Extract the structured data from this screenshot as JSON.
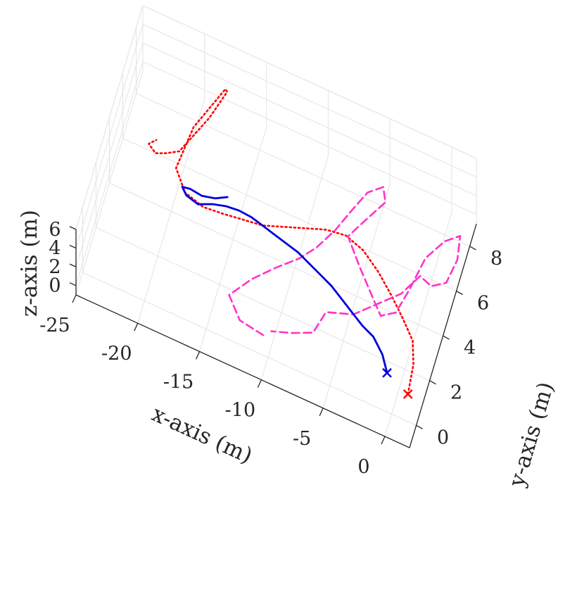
{
  "chart_data": {
    "type": "line",
    "projection": "3d",
    "title": "",
    "xlabel": "x-axis (m)",
    "ylabel": "y-axis (m)",
    "zlabel": "z-axis (m)",
    "xlim": [
      -25,
      2
    ],
    "ylim": [
      -1,
      9
    ],
    "zlim": [
      -1,
      6
    ],
    "x_ticks": [
      "-25",
      "-20",
      "-15",
      "-10",
      "-5",
      "0"
    ],
    "x_tick_values": [
      -25,
      -20,
      -15,
      -10,
      -5,
      0
    ],
    "y_ticks": [
      "0",
      "2",
      "4",
      "6",
      "8"
    ],
    "y_tick_values": [
      0,
      2,
      4,
      6,
      8
    ],
    "z_ticks": [
      "0",
      "2",
      "4",
      "6"
    ],
    "z_tick_values": [
      0,
      2,
      4,
      6
    ],
    "grid": true,
    "legend": "none",
    "series": [
      {
        "color": "#ff0000",
        "style": "dotted",
        "end_marker": "x",
        "points": [
          [
            1.0,
            0.6,
            0.3
          ],
          [
            0.8,
            1.8,
            0.5
          ],
          [
            0.3,
            2.6,
            0.8
          ],
          [
            -0.8,
            3.2,
            1.0
          ],
          [
            -2.0,
            3.8,
            1.2
          ],
          [
            -3.5,
            4.5,
            1.3
          ],
          [
            -5.0,
            5.0,
            1.5
          ],
          [
            -6.5,
            5.2,
            1.7
          ],
          [
            -8.0,
            5.0,
            1.9
          ],
          [
            -9.5,
            4.6,
            2.1
          ],
          [
            -11.0,
            4.2,
            2.3
          ],
          [
            -12.5,
            3.8,
            2.5
          ],
          [
            -14.0,
            3.6,
            2.7
          ],
          [
            -15.5,
            3.4,
            2.9
          ],
          [
            -17.0,
            3.2,
            3.2
          ],
          [
            -18.5,
            3.3,
            3.6
          ],
          [
            -19.5,
            3.8,
            4.4
          ],
          [
            -19.0,
            5.5,
            5.0
          ],
          [
            -17.5,
            7.5,
            5.2
          ],
          [
            -17.2,
            7.2,
            5.8
          ],
          [
            -18.0,
            6.0,
            5.4
          ],
          [
            -19.5,
            4.3,
            5.0
          ],
          [
            -20.3,
            3.8,
            5.5
          ],
          [
            -21.0,
            3.5,
            5.8
          ],
          [
            -21.6,
            3.6,
            6.2
          ],
          [
            -21.2,
            4.0,
            5.9
          ]
        ]
      },
      {
        "color": "#ff33cc",
        "style": "dashed",
        "points": [
          [
            -10.5,
            0.2,
            0.6
          ],
          [
            -12.5,
            0.4,
            0.5
          ],
          [
            -13.8,
            1.2,
            0.5
          ],
          [
            -12.5,
            2.2,
            0.6
          ],
          [
            -11.0,
            3.0,
            0.8
          ],
          [
            -9.5,
            3.8,
            0.8
          ],
          [
            -8.5,
            4.5,
            0.9
          ],
          [
            -7.5,
            5.5,
            1.0
          ],
          [
            -6.8,
            6.5,
            1.0
          ],
          [
            -6.0,
            7.5,
            1.1
          ],
          [
            -5.0,
            8.0,
            1.1
          ],
          [
            -4.5,
            7.4,
            1.2
          ],
          [
            -5.5,
            6.5,
            1.0
          ],
          [
            -6.5,
            5.5,
            0.9
          ],
          [
            -5.0,
            4.5,
            0.9
          ],
          [
            -3.5,
            3.6,
            0.8
          ],
          [
            -2.5,
            3.0,
            0.8
          ],
          [
            -1.5,
            3.4,
            0.8
          ],
          [
            -1.0,
            4.5,
            0.9
          ],
          [
            -0.5,
            6.0,
            1.0
          ],
          [
            0.5,
            7.0,
            1.0
          ],
          [
            1.5,
            7.5,
            1.0
          ],
          [
            1.8,
            6.5,
            1.0
          ],
          [
            1.5,
            5.4,
            1.0
          ],
          [
            0.5,
            5.0,
            1.0
          ],
          [
            -0.5,
            5.2,
            1.0
          ],
          [
            -1.5,
            4.2,
            0.9
          ],
          [
            -3.0,
            3.4,
            0.8
          ],
          [
            -4.5,
            2.6,
            0.7
          ],
          [
            -6.5,
            2.2,
            0.7
          ],
          [
            -7.0,
            1.2,
            0.6
          ],
          [
            -8.5,
            0.8,
            0.6
          ],
          [
            -10.0,
            0.5,
            0.6
          ]
        ]
      },
      {
        "color": "#0000dd",
        "style": "solid",
        "end_marker": "x",
        "points": [
          [
            -0.8,
            0.8,
            1.0
          ],
          [
            -1.5,
            1.4,
            1.1
          ],
          [
            -2.5,
            1.9,
            1.2
          ],
          [
            -3.5,
            2.1,
            1.3
          ],
          [
            -4.5,
            2.4,
            1.4
          ],
          [
            -5.5,
            2.7,
            1.5
          ],
          [
            -6.5,
            3.0,
            1.6
          ],
          [
            -7.5,
            3.2,
            1.7
          ],
          [
            -8.5,
            3.4,
            1.8
          ],
          [
            -9.5,
            3.6,
            1.9
          ],
          [
            -10.5,
            3.7,
            2.0
          ],
          [
            -11.5,
            3.8,
            2.1
          ],
          [
            -12.5,
            3.9,
            2.2
          ],
          [
            -13.5,
            4.0,
            2.3
          ],
          [
            -14.5,
            4.0,
            2.4
          ],
          [
            -15.5,
            3.9,
            2.5
          ],
          [
            -16.5,
            3.7,
            2.6
          ],
          [
            -17.5,
            3.4,
            2.7
          ],
          [
            -18.5,
            3.5,
            2.8
          ],
          [
            -19.0,
            3.8,
            2.7
          ],
          [
            -18.4,
            3.9,
            2.6
          ],
          [
            -17.4,
            3.8,
            2.7
          ],
          [
            -16.4,
            3.9,
            2.8
          ],
          [
            -15.5,
            4.1,
            3.0
          ]
        ]
      }
    ]
  }
}
